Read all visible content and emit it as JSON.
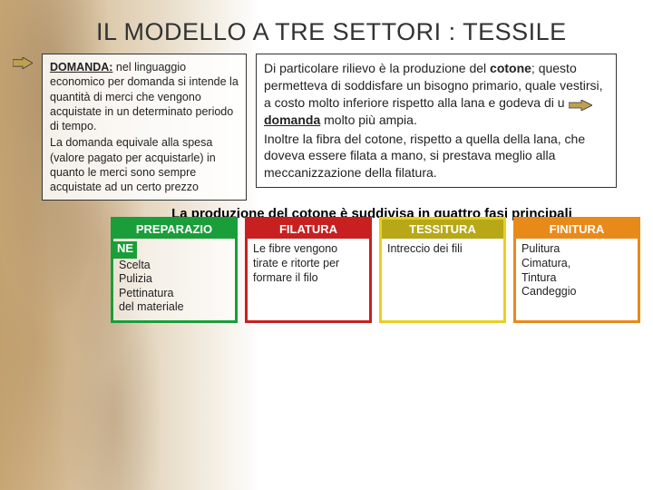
{
  "title": "IL MODELLO A TRE SETTORI : TESSILE",
  "left_box": {
    "head": "DOMANDA:",
    "p1": " nel linguaggio economico per domanda si intende la quantità di merci che vengono acquistate in un determinato periodo di tempo.",
    "p2": "La domanda equivale alla spesa (valore pagato per acquistarle) in quanto le merci sono sempre acquistate ad un certo prezzo"
  },
  "right_box": {
    "p1a": "Di particolare rilievo è la produzione del ",
    "p1b": "cotone",
    "p1c": "; questo permetteva di soddisfare un bisogno primario, quale vestirsi, a costo molto inferiore rispetto alla lana e godeva di u",
    "p1d": "domanda",
    "p1e": " molto più ampia.",
    "p2": "Inoltre la fibra del cotone, rispetto a quella della lana, che doveva essere filata a mano, si prestava meglio alla meccanizzazione della filatura."
  },
  "subtitle": "La produzione del cotone è suddivisa in quattro fasi principali",
  "arrow_fill": "#c0a050",
  "arrow_stroke": "#333333",
  "phases": [
    {
      "label": "PREPARAZIO",
      "label2": "NE",
      "body": "Scelta\nPulizia\nPettinatura\ndel materiale",
      "border": "#1a9e3a",
      "header_bg": "#1a9e3a"
    },
    {
      "label": "FILATURA",
      "body": "Le fibre vengono tirate e ritorte per formare il filo",
      "border": "#c82020",
      "header_bg": "#c82020"
    },
    {
      "label": "TESSITURA",
      "body": "Intreccio dei fili",
      "border": "#e8d020",
      "header_bg": "#b8a818"
    },
    {
      "label": "FINITURA",
      "body": "Pulitura\nCimatura,\nTintura\nCandeggio",
      "border": "#e88a1a",
      "header_bg": "#e88a1a"
    }
  ]
}
